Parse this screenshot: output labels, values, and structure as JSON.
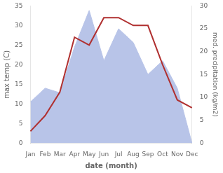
{
  "chart_data": {
    "type": "line",
    "xlabel": "date (month)",
    "ylabel": "max temp (C)",
    "y2label": "med. precipitation (kg/m2)",
    "categories": [
      "Jan",
      "Feb",
      "Mar",
      "Apr",
      "May",
      "Jun",
      "Jul",
      "Aug",
      "Sep",
      "Oct",
      "Nov",
      "Dec"
    ],
    "series": [
      {
        "type": "area",
        "color": "#b8c4e8",
        "axis": "y2",
        "values": [
          9,
          12,
          11,
          21,
          29,
          18,
          25,
          22,
          15,
          18,
          12,
          0
        ]
      },
      {
        "type": "line",
        "color": "#b03030",
        "values": [
          3,
          7,
          13,
          27,
          25,
          32,
          32,
          30,
          30,
          20,
          11,
          9
        ]
      }
    ],
    "ylim": [
      0,
      35
    ],
    "yticks": [
      0,
      5,
      10,
      15,
      20,
      25,
      30,
      35
    ],
    "y2lim": [
      0,
      30
    ],
    "y2ticks": [
      0,
      5,
      10,
      15,
      20,
      25,
      30
    ],
    "grid": false
  }
}
